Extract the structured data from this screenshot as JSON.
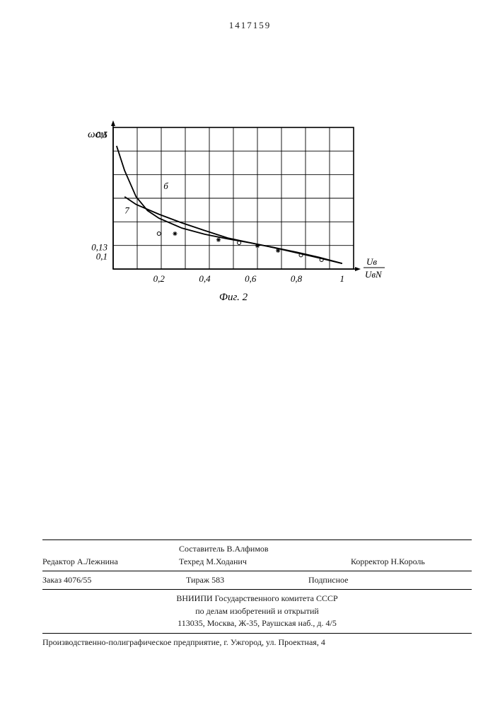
{
  "page_number": "1417159",
  "chart": {
    "type": "line+scatter",
    "caption": "Фиг. 2",
    "y_axis_label": "ωсм",
    "x_axis_label_top": "Uв",
    "x_axis_label_bot": "UвN",
    "x_ticks": [
      "0,2",
      "0,4",
      "0,6",
      "0,8",
      "1"
    ],
    "y_ticks": [
      "0,1",
      "0,13",
      "0,5"
    ],
    "xlim": [
      0,
      1.05
    ],
    "ylim": [
      0.06,
      0.52
    ],
    "grid_x_cols": 10,
    "grid_y_rows": 6,
    "grid_color": "#000000",
    "background": "#ffffff",
    "line_color": "#000000",
    "line_width": 1.8,
    "curve_6_label": "б",
    "curve_7_label": "7",
    "curve_6": [
      {
        "x": 0.015,
        "y": 0.46
      },
      {
        "x": 0.05,
        "y": 0.38
      },
      {
        "x": 0.1,
        "y": 0.295
      },
      {
        "x": 0.15,
        "y": 0.25
      },
      {
        "x": 0.2,
        "y": 0.225
      },
      {
        "x": 0.3,
        "y": 0.193
      },
      {
        "x": 0.4,
        "y": 0.173
      },
      {
        "x": 0.5,
        "y": 0.158
      },
      {
        "x": 0.6,
        "y": 0.145
      },
      {
        "x": 0.7,
        "y": 0.13
      },
      {
        "x": 0.8,
        "y": 0.115
      },
      {
        "x": 0.9,
        "y": 0.098
      },
      {
        "x": 1.0,
        "y": 0.078
      }
    ],
    "curve_7": [
      {
        "x": 0.05,
        "y": 0.295
      },
      {
        "x": 0.1,
        "y": 0.27
      },
      {
        "x": 0.2,
        "y": 0.238
      },
      {
        "x": 0.3,
        "y": 0.21
      },
      {
        "x": 0.4,
        "y": 0.185
      },
      {
        "x": 0.5,
        "y": 0.161
      },
      {
        "x": 0.6,
        "y": 0.145
      },
      {
        "x": 0.7,
        "y": 0.13
      },
      {
        "x": 0.8,
        "y": 0.113
      },
      {
        "x": 0.9,
        "y": 0.096
      },
      {
        "x": 1.0,
        "y": 0.078
      }
    ],
    "scatter_o": [
      {
        "x": 0.2,
        "y": 0.175
      },
      {
        "x": 0.55,
        "y": 0.145
      },
      {
        "x": 0.82,
        "y": 0.105
      },
      {
        "x": 0.91,
        "y": 0.09
      }
    ],
    "scatter_x": [
      {
        "x": 0.27,
        "y": 0.175
      },
      {
        "x": 0.46,
        "y": 0.155
      },
      {
        "x": 0.63,
        "y": 0.135
      },
      {
        "x": 0.72,
        "y": 0.12
      }
    ],
    "marker_size": 5,
    "tick_fontsize": 13,
    "label_fontsize": 15,
    "curve_label_pos_6": {
      "x": 0.22,
      "y": 0.32
    },
    "curve_label_pos_7": {
      "x": 0.05,
      "y": 0.24
    }
  },
  "footer": {
    "compiler_label": "Составитель",
    "compiler": "В.Алфимов",
    "editor_label": "Редактор",
    "editor": "А.Лежнина",
    "techred_label": "Техред",
    "techred": "М.Ходанич",
    "corrector_label": "Корректор",
    "corrector": "Н.Король",
    "order_label": "Заказ",
    "order": "4076/55",
    "tirage_label": "Тираж",
    "tirage": "583",
    "subscription": "Подписное",
    "org_line1": "ВНИИПИ Государственного комитета СССР",
    "org_line2": "по делам изобретений и открытий",
    "org_line3": "113035, Москва, Ж-35, Раушская наб., д. 4/5",
    "printer": "Производственно-полиграфическое предприятие, г. Ужгород, ул. Проектная, 4"
  }
}
